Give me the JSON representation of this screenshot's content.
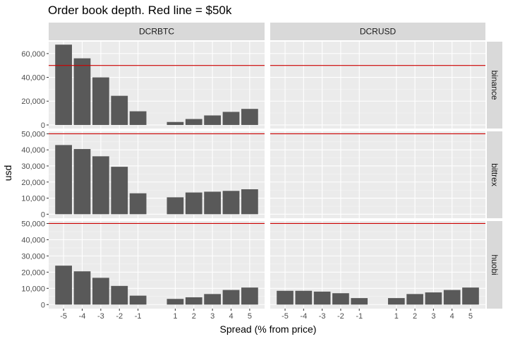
{
  "chart_data": {
    "type": "bar",
    "title": "Order book depth. Red line = $50k",
    "xlabel": "Spread (% from price)",
    "ylabel": "usd",
    "x_ticks": [
      -5,
      -4,
      -3,
      -2,
      -1,
      1,
      2,
      3,
      4,
      5
    ],
    "y_ticks": [
      0,
      10000,
      20000,
      30000,
      40000,
      50000,
      60000
    ],
    "columns": [
      "DCRBTC",
      "DCRUSD"
    ],
    "rows": [
      "binance",
      "bittrex",
      "huobi"
    ],
    "reference_line": {
      "value": 50000,
      "color": "#cc0000"
    },
    "bar_color": "#595959",
    "panel_background": "#ebebeb",
    "strip_background": "#d9d9d9",
    "panels": [
      {
        "row": "binance",
        "column": "DCRBTC",
        "ylim": [
          -3000,
          70000
        ],
        "y_ticks": [
          0,
          20000,
          40000,
          60000
        ],
        "x": [
          -5,
          -4,
          -3,
          -2,
          -1,
          1,
          2,
          3,
          4,
          5
        ],
        "values": [
          67500,
          56000,
          40000,
          24500,
          11500,
          2500,
          5000,
          8000,
          11000,
          13500
        ]
      },
      {
        "row": "binance",
        "column": "DCRUSD",
        "ylim": [
          -3000,
          70000
        ],
        "y_ticks": [
          0,
          20000,
          40000,
          60000
        ],
        "x": [],
        "values": []
      },
      {
        "row": "bittrex",
        "column": "DCRBTC",
        "ylim": [
          -2500,
          51500
        ],
        "y_ticks": [
          0,
          10000,
          20000,
          30000,
          40000,
          50000
        ],
        "x": [
          -5,
          -4,
          -3,
          -2,
          -1,
          1,
          2,
          3,
          4,
          5
        ],
        "values": [
          43000,
          40500,
          36000,
          29500,
          13000,
          10500,
          13500,
          14000,
          14500,
          15500
        ]
      },
      {
        "row": "bittrex",
        "column": "DCRUSD",
        "ylim": [
          -2500,
          51500
        ],
        "y_ticks": [
          0,
          10000,
          20000,
          30000,
          40000,
          50000
        ],
        "x": [],
        "values": []
      },
      {
        "row": "huobi",
        "column": "DCRBTC",
        "ylim": [
          -2500,
          51500
        ],
        "y_ticks": [
          0,
          10000,
          20000,
          30000,
          40000,
          50000
        ],
        "x": [
          -5,
          -4,
          -3,
          -2,
          -1,
          1,
          2,
          3,
          4,
          5
        ],
        "values": [
          24000,
          20500,
          16500,
          11500,
          5500,
          3500,
          4500,
          6500,
          9000,
          10500
        ]
      },
      {
        "row": "huobi",
        "column": "DCRUSD",
        "ylim": [
          -2500,
          51500
        ],
        "y_ticks": [
          0,
          10000,
          20000,
          30000,
          40000,
          50000
        ],
        "x": [
          -5,
          -4,
          -3,
          -2,
          -1,
          1,
          2,
          3,
          4,
          5
        ],
        "values": [
          8500,
          8500,
          8000,
          7000,
          4000,
          4000,
          6500,
          7500,
          9000,
          10500
        ]
      }
    ]
  }
}
